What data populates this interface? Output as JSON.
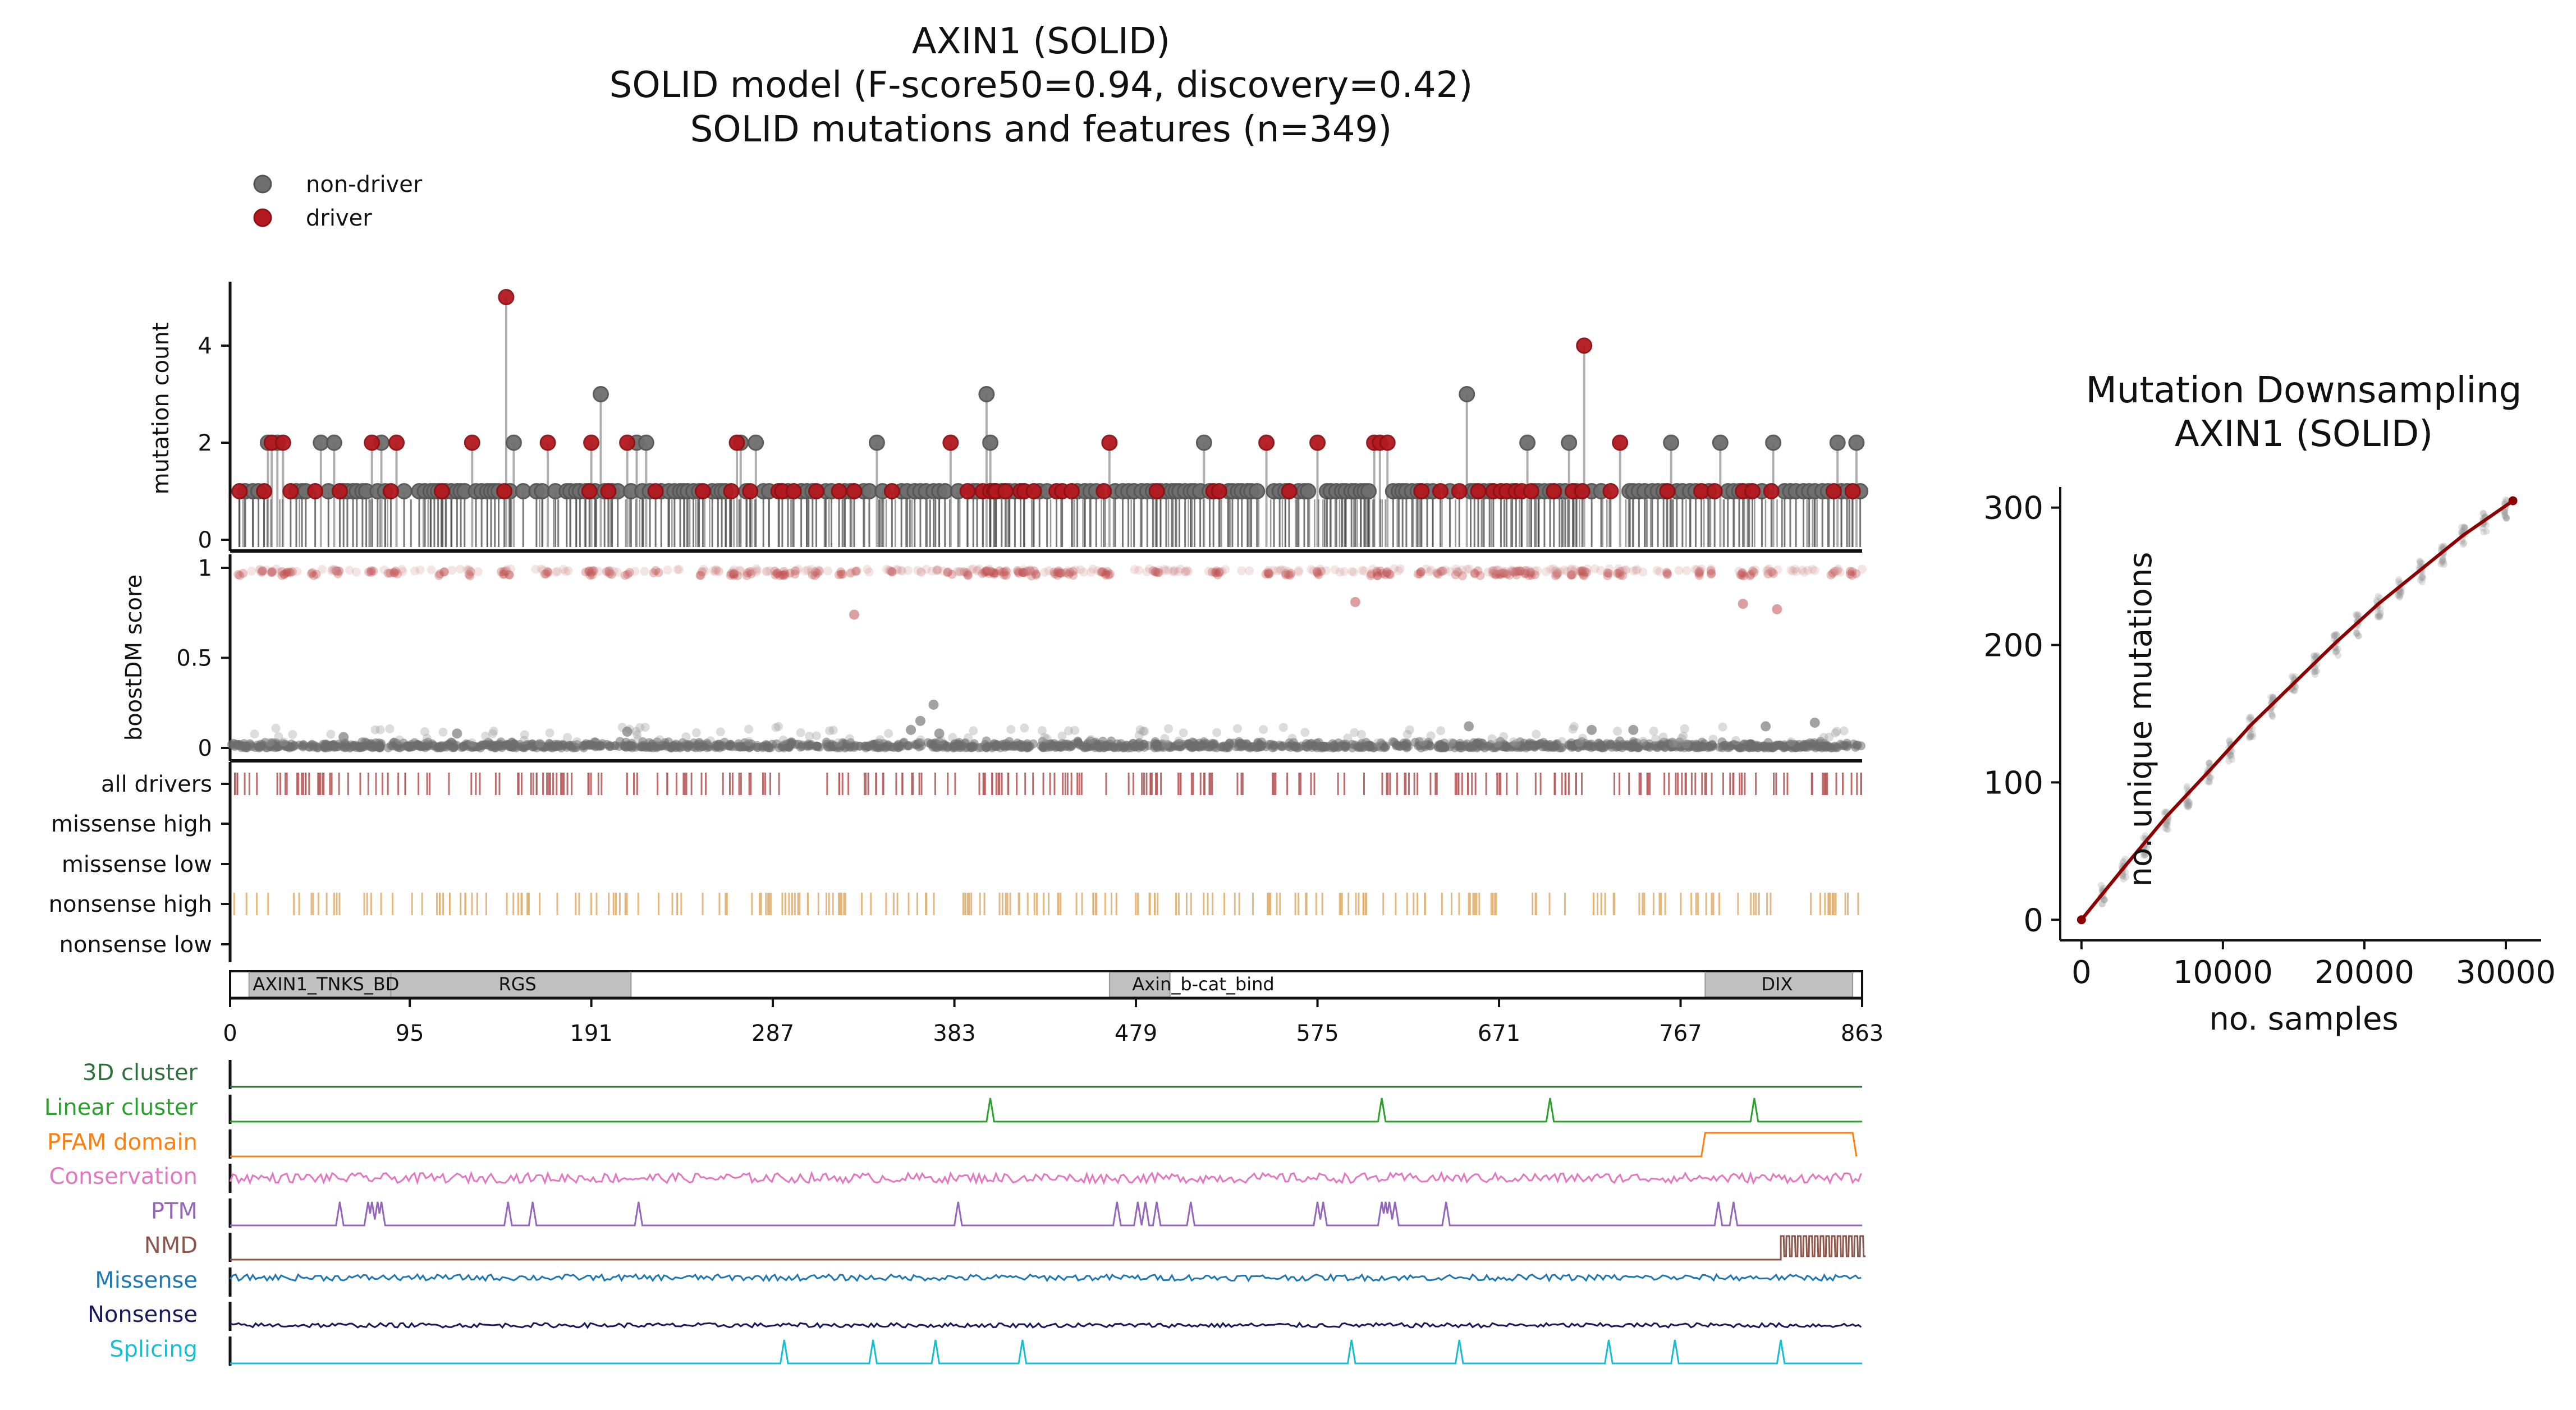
{
  "figure": {
    "title_lines": [
      "AXIN1 (SOLID)",
      "SOLID model (F-score50=0.94, discovery=0.42)",
      "SOLID mutations and features (n=349)"
    ],
    "legend": [
      {
        "label": "non-driver",
        "color": "#6e6e6e"
      },
      {
        "label": "driver",
        "color": "#b3191e"
      }
    ]
  },
  "colors": {
    "driver": "#b3191e",
    "nondriver": "#6e6e6e",
    "driver_tick": "#b65b5b",
    "nonsense_tick": "#e0b274",
    "domain_fill": "#c0c0c0"
  },
  "chart_data": [
    {
      "type": "scatter",
      "panel": "lollipop",
      "ylabel": "mutation count",
      "yticks": [
        0,
        2,
        4
      ],
      "ylim": [
        0,
        5.3
      ],
      "xlim": [
        0,
        863
      ],
      "driver_points": [
        [
          5,
          1
        ],
        [
          18,
          1
        ],
        [
          22,
          2
        ],
        [
          28,
          2
        ],
        [
          32,
          1
        ],
        [
          45,
          1
        ],
        [
          58,
          1
        ],
        [
          75,
          2
        ],
        [
          85,
          1
        ],
        [
          88,
          2
        ],
        [
          112,
          1
        ],
        [
          128,
          2
        ],
        [
          145,
          1
        ],
        [
          146,
          5
        ],
        [
          168,
          2
        ],
        [
          190,
          1
        ],
        [
          191,
          2
        ],
        [
          200,
          1
        ],
        [
          210,
          2
        ],
        [
          225,
          1
        ],
        [
          250,
          1
        ],
        [
          265,
          1
        ],
        [
          268,
          2
        ],
        [
          275,
          1
        ],
        [
          290,
          1
        ],
        [
          292,
          1
        ],
        [
          298,
          1
        ],
        [
          310,
          1
        ],
        [
          322,
          1
        ],
        [
          330,
          1
        ],
        [
          350,
          1
        ],
        [
          381,
          2
        ],
        [
          390,
          1
        ],
        [
          398,
          1
        ],
        [
          402,
          1
        ],
        [
          404,
          1
        ],
        [
          405,
          1
        ],
        [
          410,
          1
        ],
        [
          418,
          1
        ],
        [
          420,
          1
        ],
        [
          425,
          1
        ],
        [
          437,
          1
        ],
        [
          440,
          1
        ],
        [
          445,
          1
        ],
        [
          462,
          1
        ],
        [
          465,
          2
        ],
        [
          490,
          1
        ],
        [
          520,
          1
        ],
        [
          523,
          1
        ],
        [
          548,
          2
        ],
        [
          560,
          1
        ],
        [
          575,
          2
        ],
        [
          605,
          2
        ],
        [
          608,
          2
        ],
        [
          612,
          2
        ],
        [
          630,
          1
        ],
        [
          640,
          1
        ],
        [
          650,
          1
        ],
        [
          660,
          1
        ],
        [
          668,
          1
        ],
        [
          672,
          1
        ],
        [
          675,
          1
        ],
        [
          680,
          1
        ],
        [
          683,
          1
        ],
        [
          688,
          1
        ],
        [
          700,
          1
        ],
        [
          710,
          1
        ],
        [
          715,
          1
        ],
        [
          716,
          4
        ],
        [
          730,
          1
        ],
        [
          735,
          2
        ],
        [
          760,
          1
        ],
        [
          778,
          1
        ],
        [
          785,
          1
        ],
        [
          800,
          1
        ],
        [
          805,
          1
        ],
        [
          815,
          1
        ],
        [
          848,
          1
        ],
        [
          858,
          1
        ]
      ],
      "nondriver_points": [
        [
          8,
          1
        ],
        [
          12,
          1
        ],
        [
          15,
          1
        ],
        [
          20,
          2
        ],
        [
          25,
          2
        ],
        [
          35,
          1
        ],
        [
          38,
          1
        ],
        [
          40,
          1
        ],
        [
          48,
          2
        ],
        [
          52,
          1
        ],
        [
          55,
          2
        ],
        [
          60,
          1
        ],
        [
          62,
          1
        ],
        [
          65,
          1
        ],
        [
          67,
          1
        ],
        [
          70,
          1
        ],
        [
          72,
          1
        ],
        [
          78,
          1
        ],
        [
          80,
          2
        ],
        [
          82,
          1
        ],
        [
          92,
          1
        ],
        [
          100,
          1
        ],
        [
          103,
          1
        ],
        [
          106,
          1
        ],
        [
          108,
          1
        ],
        [
          110,
          1
        ],
        [
          114,
          1
        ],
        [
          117,
          1
        ],
        [
          120,
          1
        ],
        [
          122,
          1
        ],
        [
          124,
          1
        ],
        [
          130,
          1
        ],
        [
          133,
          1
        ],
        [
          136,
          1
        ],
        [
          138,
          1
        ],
        [
          140,
          1
        ],
        [
          142,
          1
        ],
        [
          148,
          1
        ],
        [
          150,
          2
        ],
        [
          155,
          1
        ],
        [
          162,
          1
        ],
        [
          165,
          1
        ],
        [
          172,
          1
        ],
        [
          178,
          1
        ],
        [
          180,
          1
        ],
        [
          183,
          1
        ],
        [
          185,
          1
        ],
        [
          188,
          1
        ],
        [
          193,
          1
        ],
        [
          196,
          3
        ],
        [
          198,
          1
        ],
        [
          202,
          1
        ],
        [
          205,
          1
        ],
        [
          212,
          1
        ],
        [
          215,
          2
        ],
        [
          218,
          1
        ],
        [
          220,
          2
        ],
        [
          222,
          1
        ],
        [
          228,
          1
        ],
        [
          232,
          1
        ],
        [
          235,
          1
        ],
        [
          238,
          1
        ],
        [
          240,
          1
        ],
        [
          242,
          1
        ],
        [
          245,
          1
        ],
        [
          248,
          1
        ],
        [
          255,
          1
        ],
        [
          258,
          1
        ],
        [
          260,
          1
        ],
        [
          262,
          1
        ],
        [
          270,
          2
        ],
        [
          273,
          1
        ],
        [
          278,
          2
        ],
        [
          282,
          1
        ],
        [
          285,
          1
        ],
        [
          295,
          1
        ],
        [
          302,
          1
        ],
        [
          305,
          1
        ],
        [
          308,
          1
        ],
        [
          315,
          1
        ],
        [
          318,
          1
        ],
        [
          325,
          1
        ],
        [
          328,
          1
        ],
        [
          335,
          1
        ],
        [
          338,
          1
        ],
        [
          342,
          2
        ],
        [
          345,
          1
        ],
        [
          355,
          1
        ],
        [
          358,
          1
        ],
        [
          362,
          1
        ],
        [
          365,
          1
        ],
        [
          368,
          1
        ],
        [
          372,
          1
        ],
        [
          375,
          1
        ],
        [
          378,
          1
        ],
        [
          385,
          1
        ],
        [
          393,
          1
        ],
        [
          395,
          1
        ],
        [
          400,
          3
        ],
        [
          402,
          2
        ],
        [
          408,
          1
        ],
        [
          412,
          1
        ],
        [
          415,
          1
        ],
        [
          428,
          1
        ],
        [
          432,
          1
        ],
        [
          448,
          1
        ],
        [
          452,
          1
        ],
        [
          455,
          1
        ],
        [
          458,
          1
        ],
        [
          468,
          1
        ],
        [
          472,
          1
        ],
        [
          475,
          1
        ],
        [
          478,
          1
        ],
        [
          482,
          1
        ],
        [
          485,
          1
        ],
        [
          488,
          1
        ],
        [
          492,
          1
        ],
        [
          495,
          1
        ],
        [
          498,
          1
        ],
        [
          500,
          1
        ],
        [
          502,
          1
        ],
        [
          505,
          1
        ],
        [
          508,
          1
        ],
        [
          510,
          1
        ],
        [
          513,
          1
        ],
        [
          515,
          2
        ],
        [
          518,
          1
        ],
        [
          528,
          1
        ],
        [
          530,
          1
        ],
        [
          533,
          1
        ],
        [
          535,
          1
        ],
        [
          538,
          1
        ],
        [
          540,
          1
        ],
        [
          543,
          1
        ],
        [
          552,
          1
        ],
        [
          555,
          1
        ],
        [
          558,
          1
        ],
        [
          565,
          1
        ],
        [
          568,
          1
        ],
        [
          570,
          1
        ],
        [
          580,
          1
        ],
        [
          582,
          1
        ],
        [
          585,
          1
        ],
        [
          588,
          1
        ],
        [
          590,
          1
        ],
        [
          593,
          1
        ],
        [
          595,
          1
        ],
        [
          598,
          1
        ],
        [
          600,
          1
        ],
        [
          602,
          1
        ],
        [
          615,
          1
        ],
        [
          618,
          1
        ],
        [
          620,
          1
        ],
        [
          622,
          1
        ],
        [
          625,
          1
        ],
        [
          628,
          1
        ],
        [
          633,
          1
        ],
        [
          636,
          1
        ],
        [
          645,
          1
        ],
        [
          654,
          3
        ],
        [
          656,
          1
        ],
        [
          658,
          1
        ],
        [
          663,
          1
        ],
        [
          666,
          1
        ],
        [
          678,
          1
        ],
        [
          686,
          2
        ],
        [
          690,
          1
        ],
        [
          692,
          1
        ],
        [
          695,
          1
        ],
        [
          698,
          1
        ],
        [
          703,
          1
        ],
        [
          706,
          1
        ],
        [
          708,
          2
        ],
        [
          712,
          1
        ],
        [
          720,
          1
        ],
        [
          725,
          1
        ],
        [
          740,
          1
        ],
        [
          742,
          1
        ],
        [
          745,
          1
        ],
        [
          748,
          1
        ],
        [
          752,
          1
        ],
        [
          755,
          1
        ],
        [
          758,
          1
        ],
        [
          762,
          2
        ],
        [
          765,
          1
        ],
        [
          768,
          1
        ],
        [
          772,
          1
        ],
        [
          775,
          1
        ],
        [
          782,
          1
        ],
        [
          788,
          2
        ],
        [
          792,
          1
        ],
        [
          795,
          1
        ],
        [
          798,
          1
        ],
        [
          803,
          1
        ],
        [
          810,
          1
        ],
        [
          816,
          2
        ],
        [
          822,
          1
        ],
        [
          825,
          1
        ],
        [
          828,
          1
        ],
        [
          832,
          1
        ],
        [
          835,
          1
        ],
        [
          838,
          1
        ],
        [
          842,
          1
        ],
        [
          845,
          1
        ],
        [
          850,
          2
        ],
        [
          852,
          1
        ],
        [
          855,
          1
        ],
        [
          860,
          2
        ],
        [
          862,
          1
        ]
      ]
    },
    {
      "type": "scatter",
      "panel": "boostdm",
      "ylabel": "boostDM score",
      "yticks": [
        0,
        0.5,
        1
      ],
      "ytick_labels": [
        "0",
        "0.5",
        "1"
      ],
      "ylim": [
        -0.05,
        1.05
      ],
      "xlim": [
        0,
        863
      ],
      "outlier_driver_points": [
        [
          330,
          0.74
        ],
        [
          595,
          0.81
        ],
        [
          800,
          0.8
        ],
        [
          818,
          0.77
        ]
      ],
      "outlier_nondriver_points": [
        [
          372,
          0.24
        ],
        [
          365,
          0.15
        ],
        [
          360,
          0.1
        ],
        [
          375,
          0.08
        ],
        [
          655,
          0.12
        ],
        [
          720,
          0.1
        ],
        [
          742,
          0.1
        ],
        [
          812,
          0.12
        ],
        [
          838,
          0.14
        ],
        [
          120,
          0.08
        ],
        [
          60,
          0.06
        ],
        [
          210,
          0.09
        ]
      ]
    },
    {
      "type": "table",
      "panel": "driver_tracks",
      "rows": [
        "all drivers",
        "missense high",
        "missense low",
        "nonsense high",
        "nonsense low"
      ]
    },
    {
      "type": "bar",
      "panel": "pfam_domains",
      "xlim": [
        0,
        863
      ],
      "xticks": [
        0,
        95,
        191,
        287,
        383,
        479,
        575,
        671,
        767,
        863
      ],
      "domains": [
        {
          "start": 10,
          "end": 85,
          "label": "AXIN1_TNKS_BD"
        },
        {
          "start": 85,
          "end": 212,
          "label": "RGS"
        },
        {
          "start": 465,
          "end": 497,
          "label": "Axin_b-cat_bind"
        },
        {
          "start": 780,
          "end": 858,
          "label": "DIX"
        }
      ]
    },
    {
      "type": "line",
      "panel": "features",
      "xlim": [
        0,
        863
      ],
      "tracks": [
        {
          "label": "3D cluster",
          "color": "#2f6f3e",
          "kind": "flat"
        },
        {
          "label": "Linear cluster",
          "color": "#2ca02c",
          "kind": "peaks",
          "peaks": [
            402,
            609,
            698,
            806
          ]
        },
        {
          "label": "PFAM domain",
          "color": "#ff7f0e",
          "kind": "step",
          "start": 780,
          "end": 858
        },
        {
          "label": "Conservation",
          "color": "#e377c2",
          "kind": "noise"
        },
        {
          "label": "PTM",
          "color": "#9467bd",
          "kind": "peaks",
          "peaks": [
            58,
            73,
            75,
            78,
            80,
            147,
            160,
            216,
            385,
            469,
            480,
            484,
            490,
            508,
            575,
            578,
            609,
            611,
            613,
            616,
            643,
            787,
            795
          ]
        },
        {
          "label": "NMD",
          "color": "#8c564b",
          "kind": "nmd",
          "start": 820,
          "end": 863
        },
        {
          "label": "Missense",
          "color": "#1f77b4",
          "kind": "noise"
        },
        {
          "label": "Nonsense",
          "color": "#1a1a5e",
          "kind": "noise"
        },
        {
          "label": "Splicing",
          "color": "#17becf",
          "kind": "peaks",
          "peaks": [
            293,
            340,
            373,
            419,
            593,
            650,
            729,
            764,
            820
          ]
        }
      ]
    },
    {
      "type": "scatter",
      "panel": "downsampling",
      "title_lines": [
        "Mutation Downsampling",
        "AXIN1 (SOLID)"
      ],
      "xlabel": "no. samples",
      "ylabel": "no. unique mutations",
      "xlim": [
        -1500,
        32500
      ],
      "ylim": [
        -15,
        315
      ],
      "xticks": [
        0,
        10000,
        20000,
        30000
      ],
      "yticks": [
        0,
        100,
        200,
        300
      ],
      "fit_line": {
        "color": "#8b0000",
        "x": [
          0,
          3000,
          6000,
          9000,
          12000,
          15000,
          18000,
          21000,
          24000,
          27000,
          30500
        ],
        "y": [
          0,
          38,
          75,
          108,
          142,
          172,
          202,
          230,
          255,
          280,
          305
        ]
      }
    }
  ]
}
